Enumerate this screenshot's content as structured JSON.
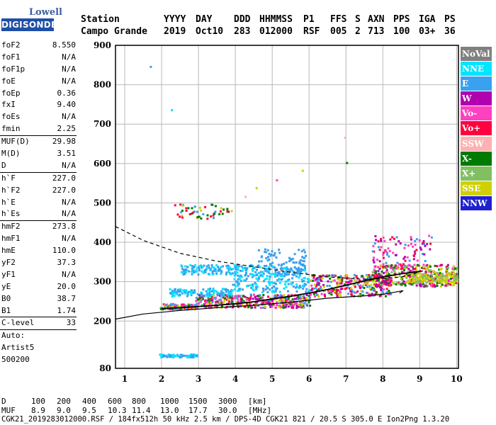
{
  "logo": {
    "line1": "Lowell",
    "line2": "DIGISONDE"
  },
  "header": {
    "row1": [
      "Station",
      "YYYY",
      "DAY",
      "DDD",
      "HHMMSS",
      "P1",
      "FFS",
      "S",
      "AXN",
      "PPS",
      "IGA",
      "PS"
    ],
    "row2": [
      "Campo Grande",
      "2019",
      "Oct10",
      "283",
      "012000",
      "RSF",
      "005",
      "2",
      "713",
      "100",
      "03+",
      "36"
    ]
  },
  "params": [
    {
      "label": "foF2",
      "value": "8.550"
    },
    {
      "label": "foF1",
      "value": "N/A"
    },
    {
      "label": "foF1p",
      "value": "N/A"
    },
    {
      "label": "foE",
      "value": "N/A"
    },
    {
      "label": "foEp",
      "value": "0.36"
    },
    {
      "label": "fxI",
      "value": "9.40"
    },
    {
      "label": "foEs",
      "value": "N/A"
    },
    {
      "label": "fmin",
      "value": "2.25",
      "sep": true
    },
    {
      "label": "MUF(D)",
      "value": "29.98"
    },
    {
      "label": "M(D)",
      "value": "3.51"
    },
    {
      "label": "D",
      "value": "N/A",
      "sep": true
    },
    {
      "label": "h`F",
      "value": "227.0"
    },
    {
      "label": "h`F2",
      "value": "227.0"
    },
    {
      "label": "h`E",
      "value": "N/A"
    },
    {
      "label": "h`Es",
      "value": "N/A",
      "sep": true
    },
    {
      "label": "hmF2",
      "value": "273.8"
    },
    {
      "label": "hmF1",
      "value": "N/A"
    },
    {
      "label": "hmE",
      "value": "110.0"
    },
    {
      "label": "yF2",
      "value": "37.3"
    },
    {
      "label": "yF1",
      "value": "N/A"
    },
    {
      "label": "yE",
      "value": "20.0"
    },
    {
      "label": "B0",
      "value": "38.7"
    },
    {
      "label": "B1",
      "value": "1.74",
      "sep": true
    },
    {
      "label": "C-level",
      "value": "33",
      "sep": true
    },
    {
      "label": "Auto:",
      "value": ""
    },
    {
      "label": "Artist5",
      "value": ""
    },
    {
      "label": "500200",
      "value": ""
    }
  ],
  "legend": [
    {
      "label": "NoVal",
      "color": "#808080"
    },
    {
      "label": "NNE",
      "color": "#00e5ff"
    },
    {
      "label": "E",
      "color": "#3aa0f0"
    },
    {
      "label": "W",
      "color": "#b000b0"
    },
    {
      "label": "Vo-",
      "color": "#ff40c0"
    },
    {
      "label": "Vo+",
      "color": "#ff0040"
    },
    {
      "label": "SSW",
      "color": "#ffb0b0"
    },
    {
      "label": "X-",
      "color": "#007a00"
    },
    {
      "label": "X+",
      "color": "#80c060"
    },
    {
      "label": "SSE",
      "color": "#d0d000"
    },
    {
      "label": "NNW",
      "color": "#2020d0"
    }
  ],
  "muf_table": {
    "row1": [
      "D",
      "100",
      "200",
      "400",
      "600",
      "800",
      "1000",
      "1500",
      "3000",
      "[km]"
    ],
    "row2": [
      "MUF",
      "8.9",
      "9.0",
      "9.5",
      "10.3",
      "11.4",
      "13.0",
      "17.7",
      "30.0",
      "[MHz]"
    ]
  },
  "footer": "CGK21_2019283012000.RSF / 184fx512h 50 kHz 2.5 km / DPS-4D CGK21 821 / 20.5 S 305.0 E Ion2Png 1.3.20",
  "chart_data": {
    "type": "scatter",
    "xlim": [
      0.75,
      10.05
    ],
    "ylim": [
      80,
      900
    ],
    "x_ticks": [
      1,
      2,
      3,
      4,
      5,
      6,
      7,
      8,
      9,
      10
    ],
    "y_ticks": [
      80,
      200,
      300,
      400,
      500,
      600,
      700,
      800,
      900
    ],
    "grid": true,
    "traces": [
      {
        "name": "profile-solid",
        "style": "solid",
        "x": [
          0.75,
          1.5,
          2.5,
          3.5,
          4.5,
          5.5,
          6.5,
          7.5,
          8.0,
          8.3,
          8.55,
          8.45
        ],
        "y": [
          205,
          218,
          227,
          234,
          240,
          248,
          258,
          264,
          268,
          273,
          277,
          271
        ]
      },
      {
        "name": "profile-dashed",
        "style": "dashed",
        "x": [
          0.75,
          1.5,
          2.5,
          3.5,
          4.5,
          5.5,
          6.5,
          7.5,
          8.0,
          8.5,
          8.85,
          9.1
        ],
        "y": [
          440,
          405,
          372,
          352,
          338,
          324,
          312,
          306,
          308,
          312,
          320,
          328
        ]
      },
      {
        "name": "trace-fitted",
        "style": "solid-thick",
        "x": [
          2.0,
          2.5,
          3.0,
          3.5,
          4.0,
          4.5,
          5.0,
          5.5,
          6.0,
          6.5,
          7.0,
          7.5,
          8.0,
          8.5,
          9.0
        ],
        "y": [
          232,
          234,
          237,
          240,
          244,
          249,
          256,
          263,
          271,
          280,
          291,
          302,
          312,
          320,
          326
        ]
      }
    ],
    "clusters": [
      {
        "x": [
          1.95,
          2.9
        ],
        "y": [
          232,
          246
        ],
        "colors": [
          "#ff0040",
          "#ff40c0",
          "#d0d000",
          "#3aa0f0",
          "#007a00"
        ],
        "n": 120
      },
      {
        "x": [
          2.9,
          6.0
        ],
        "y": [
          236,
          270
        ],
        "colors": [
          "#ff0040",
          "#ff40c0",
          "#3aa0f0",
          "#b000b0",
          "#007a00",
          "#d0d000"
        ],
        "n": 420
      },
      {
        "x": [
          6.0,
          8.2
        ],
        "y": [
          265,
          320
        ],
        "colors": [
          "#ff0040",
          "#ff40c0",
          "#b000b0",
          "#3aa0f0",
          "#007a00",
          "#d0d000"
        ],
        "n": 320
      },
      {
        "x": [
          7.7,
          10.0
        ],
        "y": [
          290,
          345
        ],
        "colors": [
          "#ff40c0",
          "#b000b0",
          "#ff0040",
          "#d0d000",
          "#80c060",
          "#007a00"
        ],
        "n": 380
      },
      {
        "x": [
          8.6,
          10.0
        ],
        "y": [
          300,
          325
        ],
        "colors": [
          "#d0d000",
          "#d0d000",
          "#80c060"
        ],
        "n": 140
      },
      {
        "x": [
          7.7,
          9.3
        ],
        "y": [
          340,
          420
        ],
        "colors": [
          "#b000b0",
          "#ff40c0",
          "#ff0040",
          "#3aa0f0"
        ],
        "n": 90
      },
      {
        "x": [
          2.5,
          5.9
        ],
        "y": [
          320,
          345
        ],
        "colors": [
          "#3aa0f0",
          "#00e5ff",
          "#3aa0f0"
        ],
        "n": 240
      },
      {
        "x": [
          2.2,
          3.9
        ],
        "y": [
          265,
          285
        ],
        "colors": [
          "#3aa0f0",
          "#00e5ff"
        ],
        "n": 120
      },
      {
        "x": [
          3.9,
          6.0
        ],
        "y": [
          275,
          320
        ],
        "colors": [
          "#3aa0f0",
          "#00e5ff"
        ],
        "n": 160
      },
      {
        "x": [
          4.6,
          5.9
        ],
        "y": [
          345,
          385
        ],
        "colors": [
          "#3aa0f0"
        ],
        "n": 60
      },
      {
        "x": [
          2.3,
          3.9
        ],
        "y": [
          462,
          500
        ],
        "colors": [
          "#ff0040",
          "#d0d000",
          "#3aa0f0",
          "#007a00"
        ],
        "n": 50
      },
      {
        "x": [
          1.9,
          2.95
        ],
        "y": [
          110,
          118
        ],
        "colors": [
          "#3aa0f0",
          "#00e5ff"
        ],
        "n": 70
      }
    ],
    "isolated_points": [
      {
        "x": 1.68,
        "y": 848,
        "color": "#3aa0f0"
      },
      {
        "x": 2.25,
        "y": 738,
        "color": "#00e5ff"
      },
      {
        "x": 6.95,
        "y": 668,
        "color": "#ffb0b0"
      },
      {
        "x": 7.0,
        "y": 604,
        "color": "#007a00"
      },
      {
        "x": 5.8,
        "y": 584,
        "color": "#d0d000"
      },
      {
        "x": 5.1,
        "y": 560,
        "color": "#ff40c0"
      },
      {
        "x": 4.55,
        "y": 540,
        "color": "#d0d000"
      },
      {
        "x": 4.25,
        "y": 518,
        "color": "#ffb0b0"
      }
    ]
  }
}
